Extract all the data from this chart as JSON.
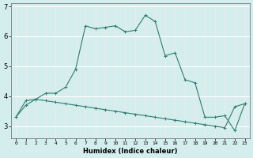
{
  "xlabel": "Humidex (Indice chaleur)",
  "background_color": "#d4eeee",
  "grid_color": "#ffffff",
  "grid_color_minor": "#f0c8c8",
  "line_color": "#2e7d6e",
  "x_values": [
    0,
    1,
    2,
    3,
    4,
    5,
    6,
    7,
    8,
    9,
    10,
    11,
    12,
    13,
    14,
    15,
    16,
    17,
    18,
    19,
    20,
    21,
    22,
    23
  ],
  "curve1_y": [
    3.3,
    3.7,
    3.9,
    4.1,
    4.1,
    4.3,
    4.9,
    6.35,
    6.25,
    6.3,
    6.35,
    6.15,
    6.2,
    6.7,
    6.5,
    5.35,
    5.45,
    4.55,
    4.45,
    3.3,
    3.3,
    3.35,
    2.85,
    3.75
  ],
  "curve2_y": [
    3.3,
    3.85,
    3.9,
    3.85,
    3.8,
    3.75,
    3.7,
    3.65,
    3.6,
    3.55,
    3.5,
    3.45,
    3.4,
    3.35,
    3.3,
    3.25,
    3.2,
    3.15,
    3.1,
    3.05,
    3.0,
    2.95,
    3.65,
    3.75
  ],
  "ylim": [
    2.6,
    7.1
  ],
  "yticks": [
    3,
    4,
    5,
    6,
    7
  ],
  "xlim": [
    -0.5,
    23.5
  ]
}
